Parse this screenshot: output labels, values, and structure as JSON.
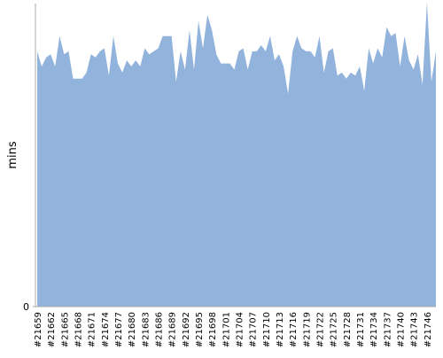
{
  "chart_data": {
    "type": "area",
    "y_label": "mins",
    "categories": [
      "#21659",
      null,
      null,
      "#21662",
      null,
      null,
      "#21665",
      null,
      null,
      "#21668",
      null,
      null,
      "#21671",
      null,
      null,
      "#21674",
      null,
      null,
      "#21677",
      null,
      null,
      "#21680",
      null,
      null,
      "#21683",
      null,
      null,
      "#21686",
      null,
      null,
      "#21689",
      null,
      null,
      "#21692",
      null,
      null,
      "#21695",
      null,
      null,
      "#21698",
      null,
      null,
      "#21701",
      null,
      null,
      "#21704",
      null,
      null,
      "#21707",
      null,
      null,
      "#21710",
      null,
      null,
      "#21713",
      null,
      null,
      "#21716",
      null,
      null,
      "#21719",
      null,
      null,
      "#21722",
      null,
      null,
      "#21725",
      null,
      null,
      "#21728",
      null,
      null,
      "#21731",
      null,
      null,
      "#21734",
      null,
      null,
      "#21737",
      null,
      null,
      "#21740",
      null,
      null,
      "#21743",
      null,
      null,
      "#21746",
      null,
      null
    ],
    "values": [
      84,
      79,
      82,
      83,
      79,
      89,
      83,
      84,
      75,
      75,
      75,
      77,
      83,
      82,
      84,
      85,
      76,
      89,
      80,
      77,
      81,
      79,
      81,
      79,
      85,
      83,
      84,
      85,
      89,
      89,
      89,
      74,
      84,
      78,
      91,
      78,
      94,
      85,
      96,
      91,
      83,
      80,
      80,
      80,
      78,
      84,
      85,
      78,
      84,
      84,
      86,
      84,
      89,
      81,
      83,
      79,
      70,
      84,
      89,
      85,
      84,
      84,
      82,
      89,
      77,
      84,
      85,
      76,
      77,
      75,
      77,
      76,
      79,
      71,
      85,
      80,
      85,
      82,
      92,
      89,
      90,
      79,
      89,
      81,
      78,
      83,
      73,
      100,
      74,
      84
    ],
    "color": "#92b3dc",
    "ylim": [
      0,
      100
    ],
    "yticks": [
      0
    ]
  }
}
